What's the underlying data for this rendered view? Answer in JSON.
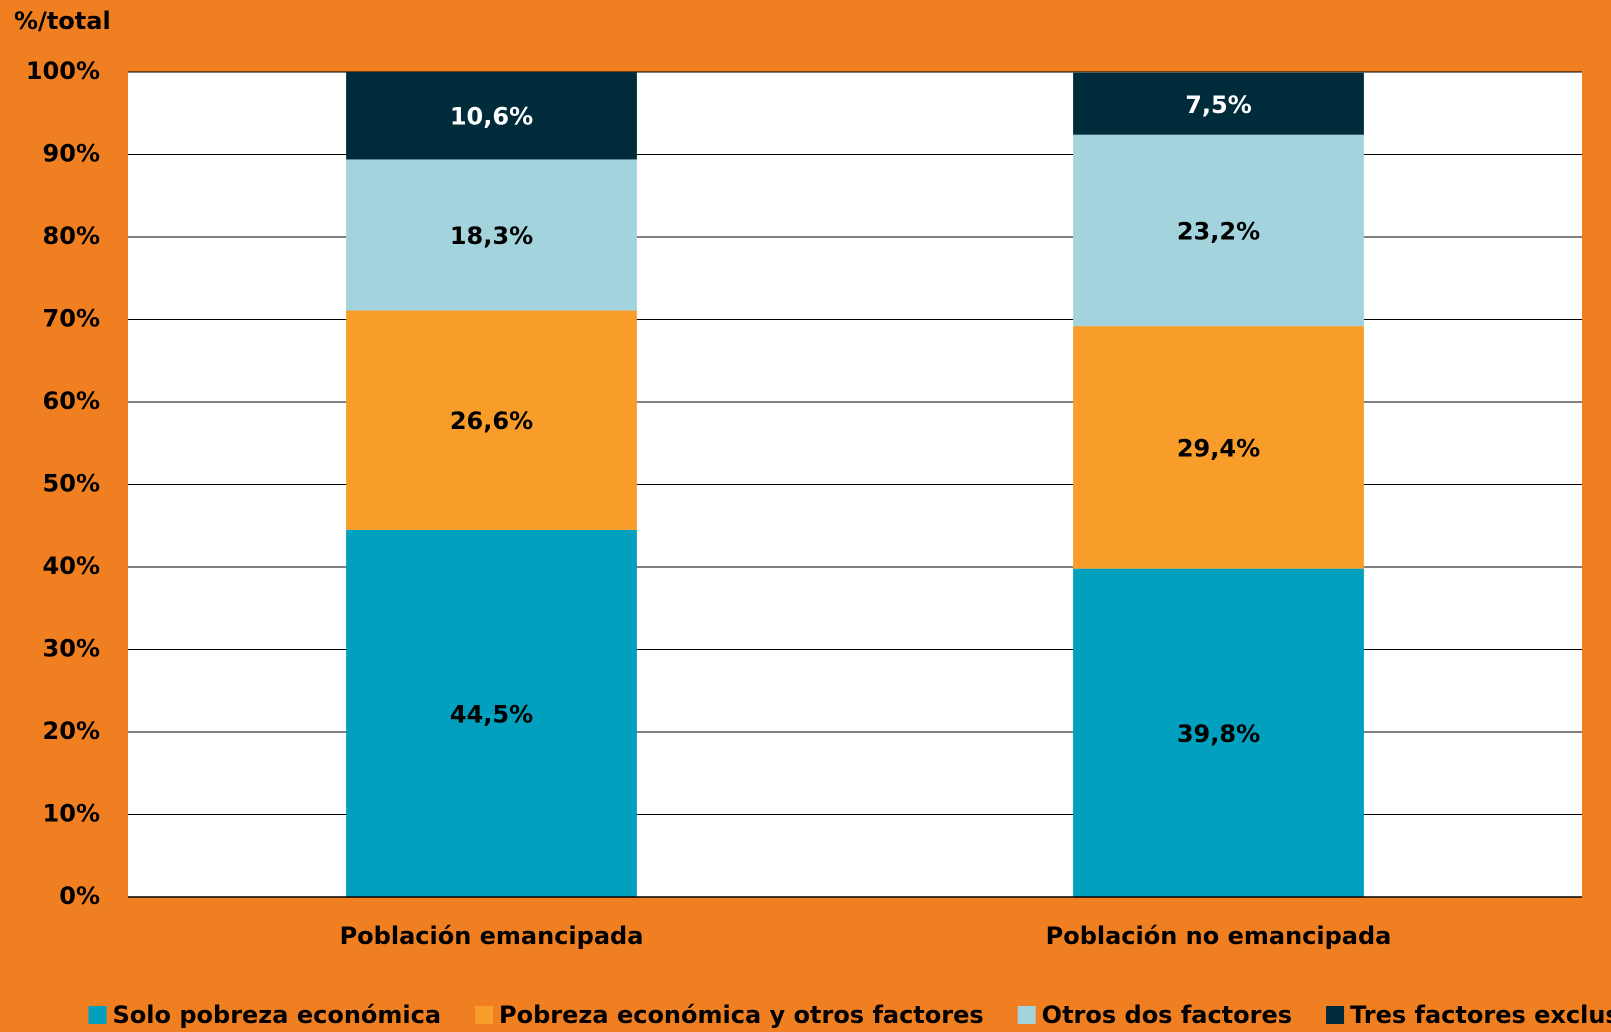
{
  "chart_data": {
    "type": "stacked_bar",
    "y_axis_label": "%/total",
    "categories": [
      "Población emancipada",
      "Población no emancipada"
    ],
    "series": [
      {
        "name": "Solo pobreza económica",
        "color": "#00a0be",
        "values": [
          44.5,
          39.8
        ],
        "value_labels": [
          "44,5%",
          "39,8%"
        ]
      },
      {
        "name": "Pobreza económica y otros factores",
        "color": "#f99d2a",
        "values": [
          26.6,
          29.4
        ],
        "value_labels": [
          "26,6%",
          "29,4%"
        ]
      },
      {
        "name": "Otros dos factores",
        "color": "#a3d4de",
        "values": [
          18.3,
          23.2
        ],
        "value_labels": [
          "18,3%",
          "23,2%"
        ]
      },
      {
        "name": "Tres factores exclusión",
        "color": "#002b3a",
        "values": [
          10.6,
          7.5
        ],
        "value_labels": [
          "10,6%",
          "7,5%"
        ]
      }
    ],
    "ylim": [
      0,
      100
    ],
    "yticks": [
      {
        "value": 0,
        "label": "0%"
      },
      {
        "value": 10,
        "label": "10%"
      },
      {
        "value": 20,
        "label": "20%"
      },
      {
        "value": 30,
        "label": "30%"
      },
      {
        "value": 40,
        "label": "40%"
      },
      {
        "value": 50,
        "label": "50%"
      },
      {
        "value": 60,
        "label": "60%"
      },
      {
        "value": 70,
        "label": "70%"
      },
      {
        "value": 80,
        "label": "80%"
      },
      {
        "value": 90,
        "label": "90%"
      },
      {
        "value": 100,
        "label": "100%"
      }
    ],
    "grid": true,
    "legend": "bottom"
  }
}
